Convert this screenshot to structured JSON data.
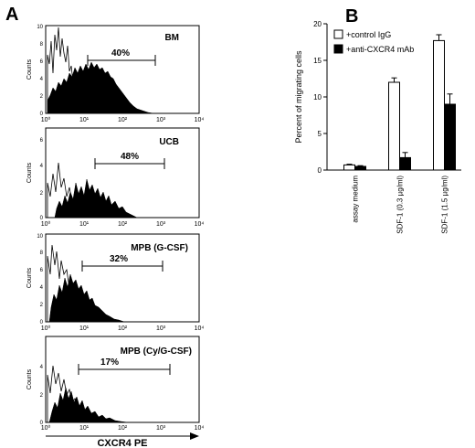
{
  "panel_a": {
    "label": "A",
    "shared_xlabel": "CXCR4 PE",
    "plots": [
      {
        "title": "BM",
        "percent_label": "40%",
        "ylabel": "Counts",
        "yticks": [
          "0",
          "2",
          "4",
          "6",
          "8",
          "10"
        ],
        "xticks": [
          "10⁰",
          "10¹",
          "10²",
          "10³",
          "10⁴"
        ]
      },
      {
        "title": "UCB",
        "percent_label": "48%",
        "ylabel": "Counts",
        "yticks": [
          "0",
          "2",
          "4",
          "6"
        ],
        "xticks": [
          "10⁰",
          "10¹",
          "10²",
          "10³",
          "10⁴"
        ]
      },
      {
        "title": "MPB (G-CSF)",
        "percent_label": "32%",
        "ylabel": "Counts",
        "yticks": [
          "0",
          "2",
          "4",
          "6",
          "8",
          "10"
        ],
        "xticks": [
          "10⁰",
          "10¹",
          "10²",
          "10³",
          "10⁴"
        ]
      },
      {
        "title": "MPB (Cy/G-CSF)",
        "percent_label": "17%",
        "ylabel": "Counts",
        "yticks": [
          "0",
          "2",
          "4"
        ],
        "xticks": [
          "10⁰",
          "10¹",
          "10²",
          "10³",
          "10⁴"
        ]
      }
    ]
  },
  "chart_data": [
    {
      "type": "bar",
      "panel": "B",
      "title": "",
      "ylabel": "Percent of migrating cells",
      "xlabel": "",
      "ylim": [
        0,
        20
      ],
      "yticks": [
        0,
        5,
        10,
        15,
        20
      ],
      "categories": [
        "assay medium",
        "SDF-1 (0.3 µg/ml)",
        "SDF-1 (1.5 µg/ml)"
      ],
      "series": [
        {
          "name": "+control IgG",
          "color": "#ffffff",
          "values": [
            0.7,
            12.0,
            17.7
          ],
          "errors": [
            0.1,
            0.6,
            0.8
          ]
        },
        {
          "name": "+anti-CXCR4 mAb",
          "color": "#000000",
          "values": [
            0.5,
            1.7,
            9.0
          ],
          "errors": [
            0.1,
            0.7,
            1.4
          ]
        }
      ],
      "legend_position": "top-left"
    }
  ]
}
